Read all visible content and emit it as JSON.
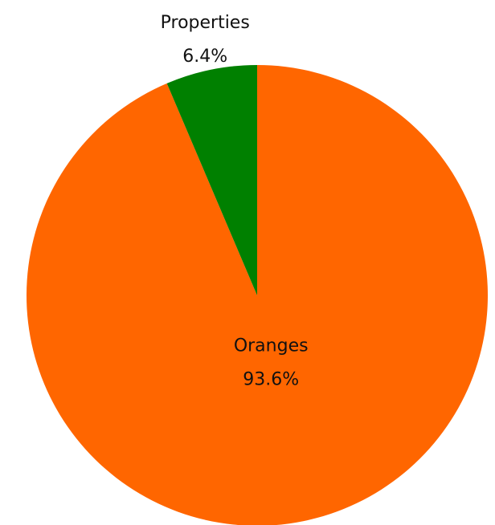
{
  "chart_data": {
    "type": "pie",
    "categories": [
      "Oranges",
      "Properties"
    ],
    "values": [
      93.6,
      6.4
    ],
    "value_labels": [
      "93.6%",
      "6.4%"
    ],
    "colors": [
      "#ff6600",
      "#008000"
    ]
  }
}
